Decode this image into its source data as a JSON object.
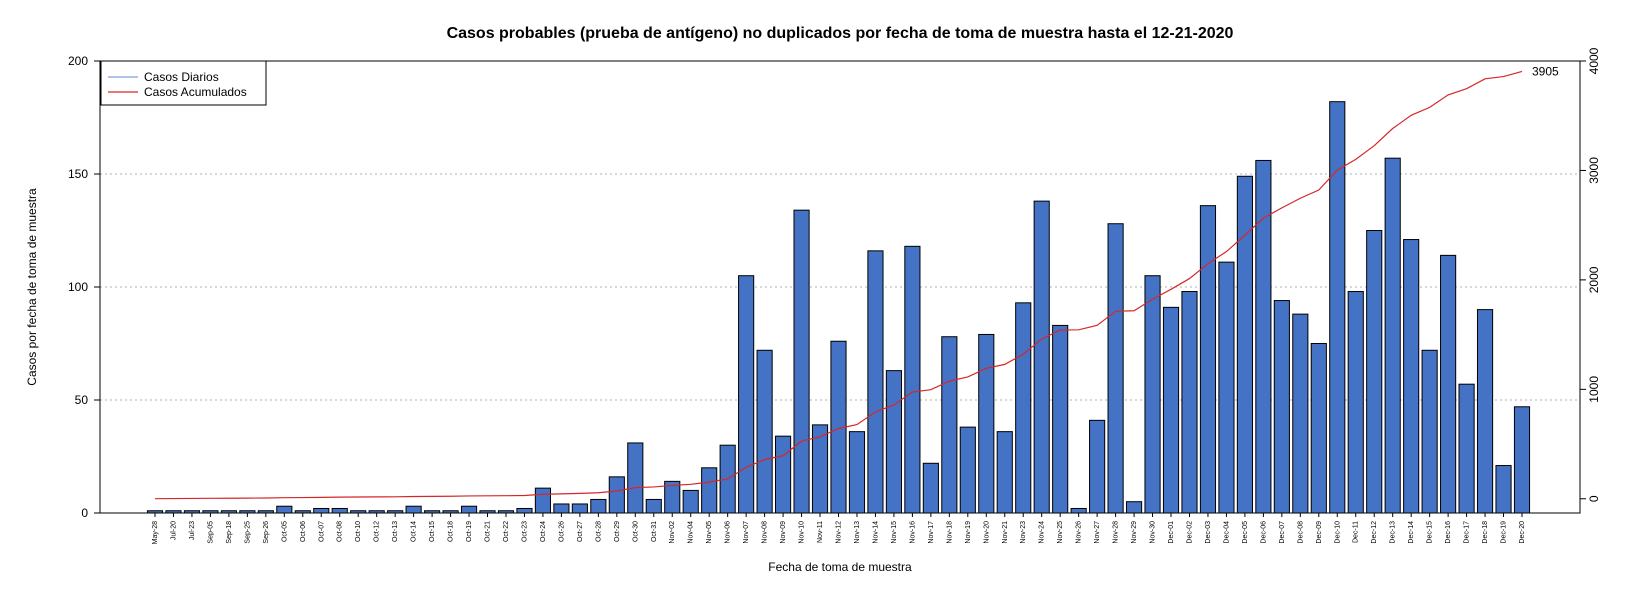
{
  "chart_data": {
    "type": "bar",
    "title": "Casos probables (prueba de antígeno) no duplicados por fecha de toma de muestra hasta el 12-21-2020",
    "xlabel": "Fecha de toma de muestra",
    "ylabel": "Casos por fecha de toma de muestra",
    "ylim": [
      0,
      200
    ],
    "y2lim": [
      -130,
      4000
    ],
    "yticks": [
      0,
      50,
      100,
      150,
      200
    ],
    "y2ticks": [
      0,
      1000,
      2000,
      3000,
      4000
    ],
    "grid": true,
    "legend_position": "top-left",
    "categories": [
      "May-28",
      "Jul-20",
      "Jul-23",
      "Sep-05",
      "Sep-18",
      "Sep-25",
      "Sep-26",
      "Oct-05",
      "Oct-06",
      "Oct-07",
      "Oct-08",
      "Oct-10",
      "Oct-12",
      "Oct-13",
      "Oct-14",
      "Oct-15",
      "Oct-18",
      "Oct-19",
      "Oct-21",
      "Oct-22",
      "Oct-23",
      "Oct-24",
      "Oct-26",
      "Oct-27",
      "Oct-28",
      "Oct-29",
      "Oct-30",
      "Oct-31",
      "Nov-02",
      "Nov-04",
      "Nov-05",
      "Nov-06",
      "Nov-07",
      "Nov-08",
      "Nov-09",
      "Nov-10",
      "Nov-11",
      "Nov-12",
      "Nov-13",
      "Nov-14",
      "Nov-15",
      "Nov-16",
      "Nov-17",
      "Nov-18",
      "Nov-19",
      "Nov-20",
      "Nov-21",
      "Nov-23",
      "Nov-24",
      "Nov-25",
      "Nov-26",
      "Nov-27",
      "Nov-28",
      "Nov-29",
      "Nov-30",
      "Dec-01",
      "Dec-02",
      "Dec-03",
      "Dec-04",
      "Dec-05",
      "Dec-06",
      "Dec-07",
      "Dec-08",
      "Dec-09",
      "Dec-10",
      "Dec-11",
      "Dec-12",
      "Dec-13",
      "Dec-14",
      "Dec-15",
      "Dec-16",
      "Dec-17",
      "Dec-18",
      "Dec-19",
      "Dec-20"
    ],
    "series": [
      {
        "name": "Casos Diarios",
        "color": "#4472c4",
        "axis": "left",
        "values": [
          1,
          1,
          1,
          1,
          1,
          1,
          1,
          3,
          1,
          2,
          2,
          1,
          1,
          1,
          3,
          1,
          1,
          3,
          1,
          1,
          2,
          11,
          4,
          4,
          6,
          16,
          31,
          6,
          14,
          10,
          20,
          30,
          105,
          72,
          34,
          134,
          39,
          76,
          36,
          116,
          63,
          118,
          22,
          78,
          38,
          79,
          36,
          93,
          138,
          83,
          2,
          41,
          128,
          5,
          105,
          91,
          98,
          136,
          111,
          149,
          156,
          94,
          88,
          75,
          182,
          98,
          125,
          157,
          121,
          72,
          114,
          57,
          90,
          21,
          47
        ]
      },
      {
        "name": "Casos Acumulados",
        "color": "#d62728",
        "axis": "right",
        "values": [
          1,
          2,
          3,
          4,
          5,
          6,
          7,
          10,
          11,
          13,
          15,
          16,
          17,
          18,
          21,
          22,
          23,
          26,
          27,
          28,
          30,
          41,
          45,
          49,
          55,
          71,
          102,
          108,
          122,
          132,
          152,
          182,
          287,
          359,
          393,
          527,
          566,
          642,
          678,
          794,
          857,
          975,
          997,
          1075,
          1113,
          1192,
          1228,
          1321,
          1459,
          1542,
          1544,
          1585,
          1713,
          1718,
          1823,
          1914,
          2012,
          2148,
          2259,
          2408,
          2564,
          2658,
          2746,
          2821,
          3003,
          3101,
          3226,
          3383,
          3504,
          3576,
          3690,
          3747,
          3837,
          3858,
          3905
        ]
      }
    ],
    "annotations": [
      {
        "text": "3905",
        "series": "Casos Acumulados",
        "category": "Dec-20",
        "value": 3905
      }
    ]
  }
}
